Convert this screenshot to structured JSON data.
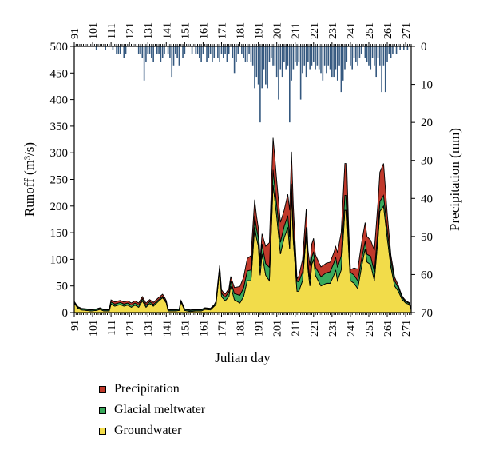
{
  "chart_data": {
    "type": "area",
    "xlabel": "Julian day",
    "ylabel_left": "Runoff (m³/s)",
    "ylabel_right": "Precipitation (mm)",
    "x_range": [
      91,
      274
    ],
    "ylim_left": [
      0,
      500
    ],
    "ylim_right": [
      0,
      70
    ],
    "right_axis_inverted": true,
    "x_ticks": [
      "91",
      "101",
      "111",
      "121",
      "131",
      "141",
      "151",
      "161",
      "171",
      "181",
      "191",
      "201",
      "211",
      "221",
      "231",
      "241",
      "251",
      "261",
      "271"
    ],
    "y_ticks_left": [
      "0",
      "50",
      "100",
      "150",
      "200",
      "250",
      "300",
      "350",
      "400",
      "450",
      "500"
    ],
    "y_ticks_right": [
      "0",
      "10",
      "20",
      "30",
      "40",
      "50",
      "60",
      "70"
    ],
    "grid": false,
    "legend_position": "bottom",
    "colors": {
      "precipitation": "#c0392b",
      "glacial": "#3aaa5c",
      "groundwater": "#f2dc4a",
      "precip_bars": "#34587f"
    },
    "series": [
      {
        "name": "Groundwater",
        "key": "groundwater",
        "keypoints": [
          [
            91,
            18
          ],
          [
            93,
            8
          ],
          [
            95,
            5
          ],
          [
            100,
            3
          ],
          [
            103,
            4
          ],
          [
            105,
            6
          ],
          [
            107,
            3
          ],
          [
            110,
            3
          ],
          [
            111,
            16
          ],
          [
            113,
            12
          ],
          [
            116,
            15
          ],
          [
            118,
            12
          ],
          [
            120,
            14
          ],
          [
            122,
            10
          ],
          [
            124,
            14
          ],
          [
            126,
            10
          ],
          [
            128,
            22
          ],
          [
            130,
            10
          ],
          [
            132,
            17
          ],
          [
            134,
            12
          ],
          [
            137,
            22
          ],
          [
            139,
            28
          ],
          [
            141,
            18
          ],
          [
            142,
            3
          ],
          [
            146,
            3
          ],
          [
            148,
            4
          ],
          [
            149,
            20
          ],
          [
            151,
            4
          ],
          [
            154,
            2
          ],
          [
            157,
            3
          ],
          [
            160,
            3
          ],
          [
            162,
            6
          ],
          [
            165,
            5
          ],
          [
            168,
            15
          ],
          [
            170,
            80
          ],
          [
            171,
            30
          ],
          [
            173,
            22
          ],
          [
            175,
            30
          ],
          [
            176,
            50
          ],
          [
            178,
            24
          ],
          [
            180,
            20
          ],
          [
            181,
            18
          ],
          [
            183,
            30
          ],
          [
            185,
            60
          ],
          [
            187,
            60
          ],
          [
            189,
            160
          ],
          [
            190,
            140
          ],
          [
            191,
            125
          ],
          [
            192,
            70
          ],
          [
            193,
            110
          ],
          [
            195,
            70
          ],
          [
            197,
            60
          ],
          [
            199,
            240
          ],
          [
            201,
            180
          ],
          [
            203,
            110
          ],
          [
            205,
            140
          ],
          [
            207,
            160
          ],
          [
            208,
            120
          ],
          [
            209,
            220
          ],
          [
            210,
            135
          ],
          [
            212,
            40
          ],
          [
            213,
            40
          ],
          [
            215,
            60
          ],
          [
            217,
            145
          ],
          [
            218,
            80
          ],
          [
            219,
            50
          ],
          [
            220,
            90
          ],
          [
            221,
            100
          ],
          [
            222,
            70
          ],
          [
            225,
            50
          ],
          [
            228,
            55
          ],
          [
            230,
            55
          ],
          [
            232,
            70
          ],
          [
            233,
            80
          ],
          [
            234,
            60
          ],
          [
            236,
            80
          ],
          [
            238,
            192
          ],
          [
            239,
            192
          ],
          [
            240,
            120
          ],
          [
            241,
            60
          ],
          [
            243,
            55
          ],
          [
            245,
            45
          ],
          [
            247,
            85
          ],
          [
            249,
            120
          ],
          [
            250,
            95
          ],
          [
            252,
            90
          ],
          [
            254,
            60
          ],
          [
            256,
            140
          ],
          [
            257,
            190
          ],
          [
            259,
            200
          ],
          [
            261,
            140
          ],
          [
            263,
            85
          ],
          [
            265,
            50
          ],
          [
            267,
            40
          ],
          [
            269,
            25
          ],
          [
            271,
            18
          ],
          [
            273,
            15
          ],
          [
            274,
            5
          ]
        ]
      },
      {
        "name": "Glacial meltwater",
        "key": "glacial",
        "keypoints": [
          [
            91,
            2
          ],
          [
            110,
            2
          ],
          [
            111,
            4
          ],
          [
            128,
            4
          ],
          [
            142,
            2
          ],
          [
            167,
            2
          ],
          [
            169,
            8
          ],
          [
            172,
            6
          ],
          [
            189,
            22
          ],
          [
            190,
            18
          ],
          [
            191,
            16
          ],
          [
            199,
            28
          ],
          [
            200,
            24
          ],
          [
            201,
            22
          ],
          [
            209,
            22
          ],
          [
            210,
            20
          ],
          [
            217,
            15
          ],
          [
            218,
            12
          ],
          [
            238,
            28
          ],
          [
            239,
            28
          ],
          [
            240,
            16
          ],
          [
            249,
            14
          ],
          [
            256,
            18
          ],
          [
            259,
            20
          ],
          [
            261,
            16
          ],
          [
            266,
            8
          ],
          [
            270,
            3
          ],
          [
            274,
            2
          ]
        ]
      },
      {
        "name": "Precipitation",
        "key": "precipitation",
        "keypoints": [
          [
            91,
            1
          ],
          [
            110,
            1
          ],
          [
            111,
            4
          ],
          [
            140,
            4
          ],
          [
            142,
            1
          ],
          [
            170,
            1
          ],
          [
            171,
            6
          ],
          [
            175,
            6
          ],
          [
            176,
            8
          ],
          [
            189,
            30
          ],
          [
            190,
            24
          ],
          [
            192,
            12
          ],
          [
            199,
            60
          ],
          [
            200,
            55
          ],
          [
            201,
            45
          ],
          [
            205,
            30
          ],
          [
            207,
            40
          ],
          [
            209,
            60
          ],
          [
            210,
            45
          ],
          [
            212,
            5
          ],
          [
            217,
            35
          ],
          [
            218,
            25
          ],
          [
            221,
            25
          ],
          [
            225,
            18
          ],
          [
            230,
            18
          ],
          [
            233,
            20
          ],
          [
            238,
            60
          ],
          [
            239,
            60
          ],
          [
            240,
            30
          ],
          [
            241,
            5
          ],
          [
            247,
            30
          ],
          [
            249,
            35
          ],
          [
            252,
            30
          ],
          [
            256,
            50
          ],
          [
            257,
            55
          ],
          [
            259,
            60
          ],
          [
            261,
            30
          ],
          [
            263,
            10
          ],
          [
            268,
            3
          ],
          [
            274,
            1
          ]
        ]
      }
    ],
    "precipitation_bars_mm": [
      [
        103,
        1
      ],
      [
        108,
        1
      ],
      [
        112,
        1
      ],
      [
        114,
        2
      ],
      [
        115,
        2
      ],
      [
        116,
        2
      ],
      [
        118,
        3
      ],
      [
        119,
        2
      ],
      [
        126,
        2
      ],
      [
        127,
        2
      ],
      [
        128,
        3
      ],
      [
        129,
        9
      ],
      [
        130,
        4
      ],
      [
        131,
        2
      ],
      [
        132,
        2
      ],
      [
        133,
        3
      ],
      [
        134,
        4
      ],
      [
        136,
        2
      ],
      [
        137,
        2
      ],
      [
        138,
        4
      ],
      [
        139,
        3
      ],
      [
        140,
        2
      ],
      [
        142,
        2
      ],
      [
        143,
        3
      ],
      [
        144,
        8
      ],
      [
        145,
        5
      ],
      [
        146,
        2
      ],
      [
        147,
        3
      ],
      [
        148,
        5
      ],
      [
        150,
        3
      ],
      [
        151,
        2
      ],
      [
        155,
        2
      ],
      [
        157,
        2
      ],
      [
        158,
        2
      ],
      [
        159,
        3
      ],
      [
        160,
        4
      ],
      [
        161,
        2
      ],
      [
        163,
        4
      ],
      [
        164,
        3
      ],
      [
        165,
        2
      ],
      [
        166,
        4
      ],
      [
        167,
        3
      ],
      [
        169,
        3
      ],
      [
        170,
        4
      ],
      [
        171,
        2
      ],
      [
        172,
        3
      ],
      [
        173,
        2
      ],
      [
        174,
        4
      ],
      [
        175,
        2
      ],
      [
        177,
        3
      ],
      [
        178,
        7
      ],
      [
        179,
        4
      ],
      [
        180,
        2
      ],
      [
        182,
        2
      ],
      [
        183,
        3
      ],
      [
        184,
        4
      ],
      [
        185,
        4
      ],
      [
        186,
        2
      ],
      [
        187,
        4
      ],
      [
        188,
        5
      ],
      [
        189,
        11
      ],
      [
        190,
        8
      ],
      [
        191,
        10
      ],
      [
        192,
        20
      ],
      [
        193,
        11
      ],
      [
        194,
        6
      ],
      [
        195,
        10
      ],
      [
        196,
        11
      ],
      [
        197,
        4
      ],
      [
        198,
        3
      ],
      [
        199,
        5
      ],
      [
        200,
        5
      ],
      [
        201,
        8
      ],
      [
        202,
        14
      ],
      [
        203,
        6
      ],
      [
        204,
        8
      ],
      [
        205,
        4
      ],
      [
        206,
        6
      ],
      [
        207,
        5
      ],
      [
        208,
        20
      ],
      [
        209,
        9
      ],
      [
        210,
        6
      ],
      [
        211,
        4
      ],
      [
        212,
        5
      ],
      [
        213,
        4
      ],
      [
        214,
        14
      ],
      [
        215,
        7
      ],
      [
        216,
        5
      ],
      [
        217,
        8
      ],
      [
        218,
        4
      ],
      [
        219,
        6
      ],
      [
        220,
        5
      ],
      [
        221,
        4
      ],
      [
        222,
        6
      ],
      [
        223,
        5
      ],
      [
        224,
        6
      ],
      [
        225,
        7
      ],
      [
        226,
        9
      ],
      [
        227,
        5
      ],
      [
        228,
        7
      ],
      [
        229,
        5
      ],
      [
        230,
        6
      ],
      [
        231,
        8
      ],
      [
        232,
        8
      ],
      [
        233,
        6
      ],
      [
        234,
        9
      ],
      [
        235,
        5
      ],
      [
        236,
        12
      ],
      [
        237,
        9
      ],
      [
        238,
        6
      ],
      [
        239,
        4
      ],
      [
        241,
        5
      ],
      [
        242,
        6
      ],
      [
        243,
        3
      ],
      [
        244,
        4
      ],
      [
        245,
        5
      ],
      [
        246,
        3
      ],
      [
        247,
        2
      ],
      [
        249,
        3
      ],
      [
        250,
        4
      ],
      [
        251,
        5
      ],
      [
        252,
        6
      ],
      [
        253,
        3
      ],
      [
        254,
        5
      ],
      [
        255,
        8
      ],
      [
        256,
        3
      ],
      [
        257,
        5
      ],
      [
        258,
        12
      ],
      [
        259,
        5
      ],
      [
        260,
        12
      ],
      [
        261,
        4
      ],
      [
        262,
        2
      ],
      [
        263,
        3
      ],
      [
        264,
        2
      ],
      [
        266,
        2
      ],
      [
        268,
        1
      ],
      [
        270,
        1
      ],
      [
        272,
        1
      ]
    ]
  },
  "legend": [
    {
      "label": "Precipitation",
      "color": "#c0392b"
    },
    {
      "label": "Glacial meltwater",
      "color": "#3aaa5c"
    },
    {
      "label": "Groundwater",
      "color": "#f2dc4a"
    }
  ]
}
